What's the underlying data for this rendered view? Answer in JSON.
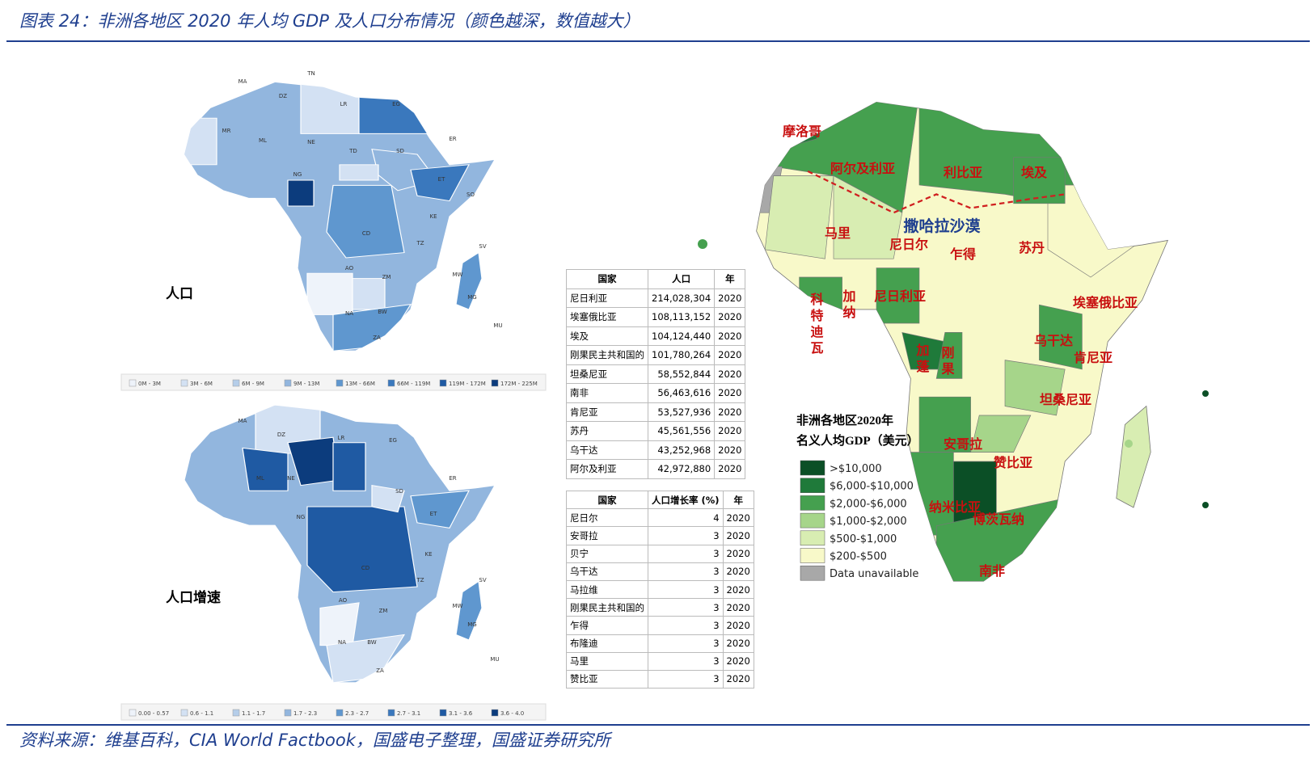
{
  "header": {
    "title": "图表 24：非洲各地区 2020 年人均 GDP 及人口分布情况（颜色越深，数值越大）"
  },
  "population_map": {
    "label": "人口",
    "legend": [
      "0M - 3M",
      "3M - 6M",
      "6M - 9M",
      "9M - 13M",
      "13M - 66M",
      "66M - 119M",
      "119M - 172M",
      "172M - 225M"
    ],
    "colors": [
      "#eef3fa",
      "#d3e1f3",
      "#b5cde9",
      "#92b6de",
      "#5f97cf",
      "#3a78bd",
      "#1f5aa3",
      "#0c3c7d"
    ],
    "codes": [
      "MA",
      "DZ",
      "TN",
      "LR",
      "EG",
      "MR",
      "ML",
      "NE",
      "TD",
      "SD",
      "ER",
      "NG",
      "ET",
      "SO",
      "CD",
      "KE",
      "TZ",
      "AO",
      "ZM",
      "MG",
      "NA",
      "BW",
      "ZA",
      "MW",
      "SV",
      "MU"
    ]
  },
  "growth_map": {
    "label": "人口增速",
    "legend": [
      "0.00 - 0.57",
      "0.6 - 1.1",
      "1.1 - 1.7",
      "1.7 - 2.3",
      "2.3 - 2.7",
      "2.7 - 3.1",
      "3.1 - 3.6",
      "3.6 - 4.0"
    ],
    "colors": [
      "#eef3fa",
      "#d3e1f3",
      "#b5cde9",
      "#92b6de",
      "#5f97cf",
      "#3a78bd",
      "#1f5aa3",
      "#0c3c7d"
    ],
    "codes": [
      "MA",
      "DZ",
      "LR",
      "EG",
      "ML",
      "NE",
      "NG",
      "SD",
      "ER",
      "ET",
      "CD",
      "KE",
      "TZ",
      "AO",
      "ZM",
      "NA",
      "BW",
      "ZA",
      "MG",
      "MW",
      "SV",
      "MU"
    ]
  },
  "population_table": {
    "columns": [
      "国家",
      "人口",
      "年"
    ],
    "rows": [
      [
        "尼日利亚",
        "214,028,304",
        "2020"
      ],
      [
        "埃塞俄比亚",
        "108,113,152",
        "2020"
      ],
      [
        "埃及",
        "104,124,440",
        "2020"
      ],
      [
        "刚果民主共和国的",
        "101,780,264",
        "2020"
      ],
      [
        "坦桑尼亚",
        "58,552,844",
        "2020"
      ],
      [
        "南非",
        "56,463,616",
        "2020"
      ],
      [
        "肯尼亚",
        "53,527,936",
        "2020"
      ],
      [
        "苏丹",
        "45,561,556",
        "2020"
      ],
      [
        "乌干达",
        "43,252,968",
        "2020"
      ],
      [
        "阿尔及利亚",
        "42,972,880",
        "2020"
      ]
    ]
  },
  "growth_table": {
    "columns": [
      "国家",
      "人口增长率 (%)",
      "年"
    ],
    "rows": [
      [
        "尼日尔",
        "4",
        "2020"
      ],
      [
        "安哥拉",
        "3",
        "2020"
      ],
      [
        "贝宁",
        "3",
        "2020"
      ],
      [
        "乌干达",
        "3",
        "2020"
      ],
      [
        "马拉维",
        "3",
        "2020"
      ],
      [
        "刚果民主共和国的",
        "3",
        "2020"
      ],
      [
        "乍得",
        "3",
        "2020"
      ],
      [
        "布隆迪",
        "3",
        "2020"
      ],
      [
        "马里",
        "3",
        "2020"
      ],
      [
        "赞比亚",
        "3",
        "2020"
      ]
    ]
  },
  "gdp_map": {
    "legend_title": [
      "非洲各地区2020年",
      "名义人均GDP（美元）"
    ],
    "legend": [
      {
        "label": ">$10,000",
        "color": "#0b4f26"
      },
      {
        "label": "$6,000-$10,000",
        "color": "#1f7a3a"
      },
      {
        "label": "$2,000-$6,000",
        "color": "#45a04f"
      },
      {
        "label": "$1,000-$2,000",
        "color": "#a6d58a"
      },
      {
        "label": "$500-$1,000",
        "color": "#d8edb2"
      },
      {
        "label": "$200-$500",
        "color": "#f8f9c9"
      },
      {
        "label": "Data unavailable",
        "color": "#a8a8a8"
      }
    ],
    "labels": [
      "摩洛哥",
      "阿尔及利亚",
      "利比亚",
      "埃及",
      "撒哈拉沙漠",
      "马里",
      "尼日尔",
      "乍得",
      "苏丹",
      "尼日利亚",
      "科特迪瓦",
      "加纳",
      "埃塞俄比亚",
      "乌干达",
      "肯尼亚",
      "加蓬",
      "刚果",
      "坦桑尼亚",
      "安哥拉",
      "赞比亚",
      "纳米比亚",
      "博茨瓦纳",
      "南非"
    ]
  },
  "footer": {
    "source": "资料来源：维基百科，CIA World Factbook，国盛电子整理，国盛证券研究所"
  }
}
